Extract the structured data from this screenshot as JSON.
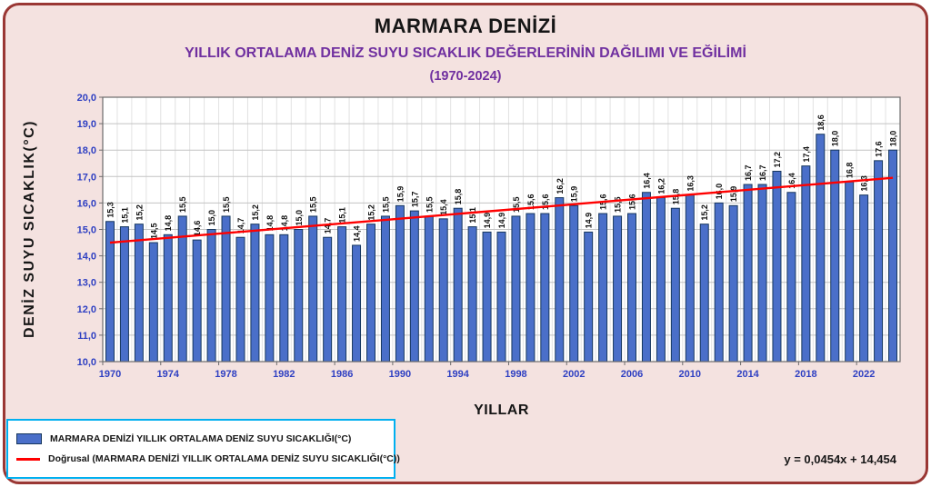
{
  "header": {
    "title": "MARMARA DENİZİ",
    "subtitle": "YILLIK ORTALAMA DENİZ SUYU SICAKLIK DEĞERLERİNİN  DAĞILIMI VE EĞİLİMİ",
    "period": "(1970-2024)"
  },
  "axes": {
    "y_title": "DENİZ SUYU  SICAKLIK(°C)",
    "x_title": "YILLAR"
  },
  "legend": {
    "series_label": "MARMARA DENİZİ  YILLIK ORTALAMA DENİZ SUYU SICAKLIĞI(°C)",
    "trend_label": "Doğrusal (MARMARA DENİZİ  YILLIK ORTALAMA DENİZ SUYU SICAKLIĞI(°C))"
  },
  "trend_equation": "y = 0,0454x + 14,454",
  "colors": {
    "background": "#f4e2e0",
    "frame_border": "#9a3734",
    "subtitle_text": "#7030a0",
    "tick_text": "#2e3fc2",
    "bar_fill": "#4a6fc9",
    "bar_edge": "#17375e",
    "trend_line": "#ff0000",
    "legend_border": "#00b0f0",
    "grid_h": "#c3c3c3",
    "grid_v": "#e2e2e2",
    "plot_border": "#6b6b6b"
  },
  "chart_data": {
    "type": "bar",
    "title": "MARMARA DENİZİ — YILLIK ORTALAMA DENİZ SUYU SICAKLIK DEĞERLERİNİN DAĞILIMI VE EĞİLİMİ (1970-2024)",
    "xlabel": "YILLAR",
    "ylabel": "DENİZ SUYU SICAKLIK(°C)",
    "ylim": [
      10,
      20
    ],
    "ytick_step": 1,
    "grid": true,
    "legend_position": "bottom-left",
    "years": [
      1970,
      1971,
      1972,
      1973,
      1974,
      1975,
      1976,
      1977,
      1978,
      1979,
      1980,
      1981,
      1982,
      1983,
      1984,
      1985,
      1986,
      1987,
      1988,
      1989,
      1990,
      1991,
      1992,
      1993,
      1994,
      1995,
      1996,
      1997,
      1998,
      1999,
      2000,
      2001,
      2002,
      2003,
      2004,
      2005,
      2006,
      2007,
      2008,
      2009,
      2010,
      2011,
      2012,
      2013,
      2014,
      2015,
      2016,
      2017,
      2018,
      2019,
      2020,
      2021,
      2022,
      2023,
      2024
    ],
    "values": [
      15.3,
      15.1,
      15.2,
      14.5,
      14.8,
      15.5,
      14.6,
      15.0,
      15.5,
      14.7,
      15.2,
      14.8,
      14.8,
      15.0,
      15.5,
      14.7,
      15.1,
      14.4,
      15.2,
      15.5,
      15.9,
      15.7,
      15.5,
      15.4,
      15.8,
      15.1,
      14.9,
      14.9,
      15.5,
      15.6,
      15.6,
      16.2,
      15.9,
      14.9,
      15.6,
      15.5,
      15.6,
      16.4,
      16.2,
      15.8,
      16.3,
      15.2,
      16.0,
      15.9,
      16.7,
      16.7,
      17.2,
      16.4,
      17.4,
      18.6,
      18.0,
      16.8,
      16.3,
      17.6,
      18.0
    ],
    "value_labels": [
      "15,3",
      "15,1",
      "15,2",
      "14,5",
      "14,8",
      "15,5",
      "14,6",
      "15,0",
      "15,5",
      "14,7",
      "15,2",
      "14,8",
      "14,8",
      "15,0",
      "15,5",
      "14,7",
      "15,1",
      "14,4",
      "15,2",
      "15,5",
      "15,9",
      "15,7",
      "15,5",
      "15,4",
      "15,8",
      "15,1",
      "14,9",
      "14,9",
      "15,5",
      "15,6",
      "15,6",
      "16,2",
      "15,9",
      "14,9",
      "15,6",
      "15,5",
      "15,6",
      "16,4",
      "16,2",
      "15,8",
      "16,3",
      "15,2",
      "16,0",
      "15,9",
      "16,7",
      "16,7",
      "17,2",
      "16,4",
      "17,4",
      "18,6",
      "18,0",
      "16,8",
      "16,3",
      "17,6",
      "18,0"
    ],
    "xticks": [
      1970,
      1974,
      1978,
      1982,
      1986,
      1990,
      1994,
      1998,
      2002,
      2006,
      2010,
      2014,
      2018,
      2022
    ],
    "trend": {
      "slope": 0.0454,
      "intercept": 14.454,
      "equation": "y = 0,0454x + 14,454"
    }
  }
}
